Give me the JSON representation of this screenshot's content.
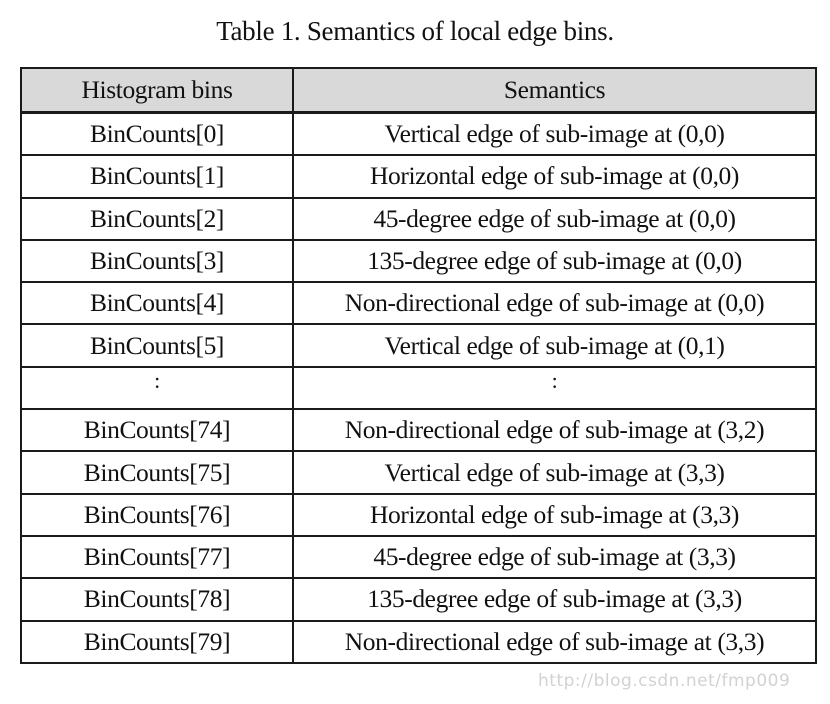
{
  "caption": "Table 1. Semantics of local edge bins.",
  "table": {
    "headers": [
      "Histogram bins",
      "Semantics"
    ],
    "rows": [
      {
        "bin": "BinCounts[0]",
        "semantics": "Vertical edge of sub-image at (0,0)"
      },
      {
        "bin": "BinCounts[1]",
        "semantics": "Horizontal edge of sub-image at (0,0)"
      },
      {
        "bin": "BinCounts[2]",
        "semantics": "45-degree edge of sub-image at (0,0)"
      },
      {
        "bin": "BinCounts[3]",
        "semantics": "135-degree edge of sub-image at (0,0)"
      },
      {
        "bin": "BinCounts[4]",
        "semantics": "Non-directional edge of sub-image at (0,0)"
      },
      {
        "bin": "BinCounts[5]",
        "semantics": "Vertical edge of sub-image at (0,1)"
      },
      {
        "bin": ":",
        "semantics": ":"
      },
      {
        "bin": "BinCounts[74]",
        "semantics": "Non-directional edge of sub-image at (3,2)"
      },
      {
        "bin": "BinCounts[75]",
        "semantics": "Vertical edge of sub-image at (3,3)"
      },
      {
        "bin": "BinCounts[76]",
        "semantics": "Horizontal edge of sub-image at (3,3)"
      },
      {
        "bin": "BinCounts[77]",
        "semantics": "45-degree edge of sub-image at (3,3)"
      },
      {
        "bin": "BinCounts[78]",
        "semantics": "135-degree edge of sub-image at (3,3)"
      },
      {
        "bin": "BinCounts[79]",
        "semantics": "Non-directional edge of sub-image at (3,3)"
      }
    ]
  },
  "watermark": "http://blog.csdn.net/fmp009"
}
